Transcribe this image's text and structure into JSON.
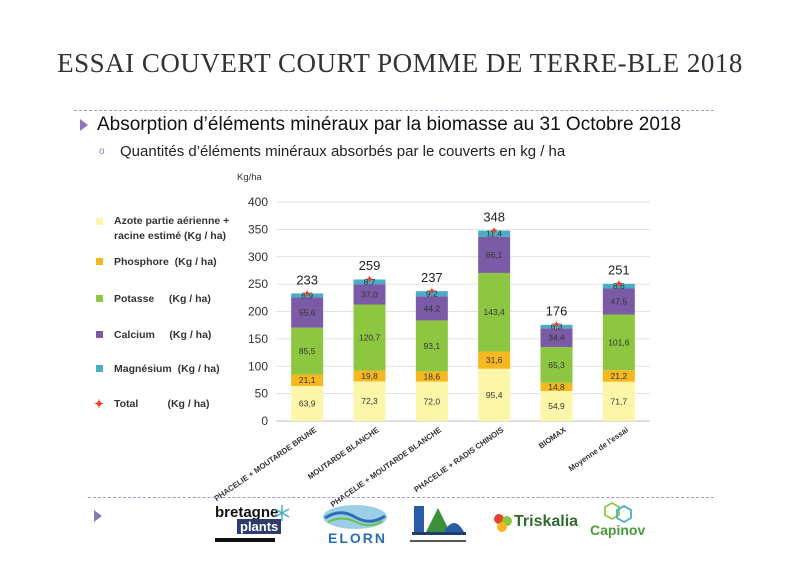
{
  "slide": {
    "title": "ESSAI COUVERT COURT POMME DE TERRE-BLE 2018",
    "heading": "Absorption d’éléments minéraux par la biomasse au 31 Octobre 2018",
    "subheading": "Quantités d’éléments minéraux absorbés  par le couverts en kg / ha",
    "colors": {
      "accent": "#8b7ab8"
    }
  },
  "chart_data": {
    "type": "bar",
    "stacked": true,
    "ylabel": "Kg/ha",
    "ylim": [
      0,
      400
    ],
    "yticks": [
      0,
      50,
      100,
      150,
      200,
      250,
      300,
      350,
      400
    ],
    "categories": [
      "PHACELIE + MOUTARDE BRUNE",
      "MOUTARDE BLANCHE",
      "PHACELIE + MOUTARDE BLANCHE",
      "PHACELIE + RADIS CHINOIS",
      "BIOMAX",
      "Moyenne de l'essai"
    ],
    "series": [
      {
        "name": "Azote  partie aérienne + racine estimé (Kg / ha)",
        "color": "#fbf6a8",
        "values": [
          63.9,
          72.3,
          72.0,
          95.4,
          54.9,
          71.7
        ],
        "labels": [
          "63,9",
          "72,3",
          "72,0",
          "95,4",
          "54,9",
          "71,7"
        ]
      },
      {
        "name": "Phosphore  (Kg / ha)",
        "color": "#f6b820",
        "values": [
          21.1,
          19.8,
          18.6,
          31.6,
          14.8,
          21.2
        ],
        "labels": [
          "21,1",
          "19,8",
          "18,6",
          "31,6",
          "14,8",
          "21,2"
        ]
      },
      {
        "name": "Potasse     (Kg / ha)",
        "color": "#8dc641",
        "values": [
          85.5,
          120.7,
          93.1,
          143.4,
          65.3,
          101.6
        ],
        "labels": [
          "85,5",
          "120,7",
          "93,1",
          "143,4",
          "65,3",
          "101,6"
        ]
      },
      {
        "name": "Calcium     (Kg / ha)",
        "color": "#7b5ba6",
        "values": [
          55.6,
          37.0,
          44.2,
          66.1,
          34.4,
          47.5
        ],
        "labels": [
          "55,6",
          "37,0",
          "44,2",
          "66,1",
          "34,4",
          "47,5"
        ]
      },
      {
        "name": "Magnésium  (Kg / ha)",
        "color": "#4bacc6",
        "values": [
          6.9,
          8.7,
          9.2,
          11.4,
          6.3,
          8.6
        ],
        "labels": [
          "6,9",
          "8,7",
          "9,2",
          "11,4",
          "6,3",
          "8,6"
        ]
      }
    ],
    "total": {
      "name": "Total          (Kg / ha)",
      "color": "#e8412c",
      "values": [
        233,
        259,
        237,
        348,
        176,
        251
      ],
      "labels": [
        "233",
        "259",
        "237",
        "348",
        "176",
        "251"
      ]
    },
    "grid": true,
    "legend": "left"
  },
  "logos": {
    "bretagne": {
      "line1": "bretagne",
      "line2": "plants"
    },
    "elorn": "ELORN",
    "triskalia": "Triskalia",
    "capinov": "Capinov"
  }
}
